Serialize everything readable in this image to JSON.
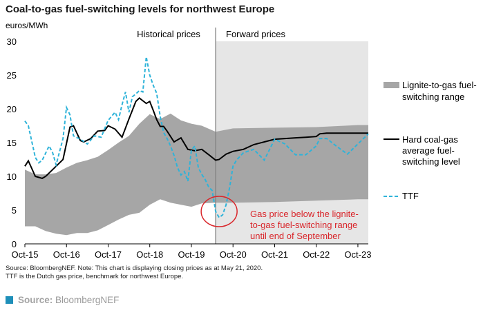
{
  "title": "Coal-to-gas fuel-switching levels for northwest Europe",
  "source_note_line1": "Source: BloombergNEF. Note: This chart is displaying closing prices as at May 21, 2020.",
  "source_note_line2": "TTF is the Dutch gas price, benchmark for northwest Europe.",
  "source_footer_label": "Source:",
  "source_footer_value": "BloombergNEF",
  "colors": {
    "band": "#a6a6a6",
    "hard_coal": "#000000",
    "ttf": "#2eb3d9",
    "forward_shading": "#e6e6e6",
    "annotation": "#d9262b",
    "divider": "#808080",
    "brand_square": "#1e8fb9"
  },
  "chart_data": {
    "type": "line",
    "ylabel": "euros/MWh",
    "ylim": [
      0,
      30
    ],
    "yticks": [
      0,
      5,
      10,
      15,
      20,
      25,
      30
    ],
    "xlim": [
      "2015-10",
      "2024-01"
    ],
    "xticks": [
      "Oct-15",
      "Oct-16",
      "Oct-17",
      "Oct-18",
      "Oct-19",
      "Oct-20",
      "Oct-21",
      "Oct-22",
      "Oct-23"
    ],
    "grid": false,
    "region_labels": {
      "historical": "Historical prices",
      "forward": "Forward prices",
      "forward_start": "2020-05"
    },
    "legend": {
      "placement": "right",
      "band": "Lignite-to-gas fuel-switching range",
      "hard_coal": "Hard coal-gas average fuel-switching level",
      "ttf": "TTF"
    },
    "annotation": {
      "text": "Gas price below the lignite-to-gas fuel-switching range until end of September",
      "lines": [
        "Gas price below the lignite-",
        "to-gas fuel-switching range",
        "until end of September"
      ],
      "circle_center": [
        "2020-06",
        4.8
      ]
    },
    "series": [
      {
        "name": "Lignite-to-gas fuel-switching range",
        "style": "band",
        "x": [
          "2015-10",
          "2016-01",
          "2016-04",
          "2016-07",
          "2016-10",
          "2017-01",
          "2017-04",
          "2017-07",
          "2017-10",
          "2018-01",
          "2018-04",
          "2018-07",
          "2018-10",
          "2019-01",
          "2019-04",
          "2019-07",
          "2019-10",
          "2020-01",
          "2020-05",
          "2020-10",
          "2021-10",
          "2022-10",
          "2023-10",
          "2024-01"
        ],
        "low": [
          2.6,
          2.6,
          1.9,
          1.5,
          1.3,
          1.6,
          1.6,
          2.0,
          2.8,
          3.6,
          4.3,
          4.6,
          5.8,
          6.6,
          6.1,
          5.8,
          5.5,
          6.0,
          6.1,
          6.1,
          6.2,
          6.4,
          6.6,
          6.6
        ],
        "high": [
          11.0,
          10.3,
          10.3,
          10.5,
          11.3,
          12.0,
          12.4,
          12.9,
          13.9,
          15.0,
          16.0,
          17.8,
          19.2,
          18.5,
          19.3,
          18.3,
          17.8,
          17.5,
          16.6,
          17.1,
          17.2,
          17.3,
          17.6,
          17.6
        ]
      },
      {
        "name": "Hard coal-gas average fuel-switching level",
        "style": "solid",
        "x": [
          "2015-10",
          "2015-11",
          "2016-01",
          "2016-03",
          "2016-04",
          "2016-07",
          "2016-09",
          "2016-11",
          "2016-12",
          "2017-02",
          "2017-03",
          "2017-05",
          "2017-07",
          "2017-09",
          "2017-10",
          "2017-12",
          "2018-02",
          "2018-04",
          "2018-06",
          "2018-07",
          "2018-09",
          "2018-10",
          "2018-11",
          "2018-12",
          "2019-01",
          "2019-02",
          "2019-03",
          "2019-05",
          "2019-07",
          "2019-09",
          "2019-11",
          "2020-01",
          "2020-03",
          "2020-05",
          "2020-06",
          "2020-08",
          "2020-10",
          "2021-01",
          "2021-04",
          "2021-07",
          "2021-10",
          "2022-01",
          "2022-04",
          "2022-07",
          "2022-10",
          "2022-11",
          "2023-01",
          "2023-04",
          "2023-07",
          "2023-10",
          "2024-01"
        ],
        "values": [
          11.5,
          12.3,
          10.0,
          9.7,
          10.0,
          11.5,
          12.5,
          17.3,
          17.5,
          15.3,
          15.1,
          15.6,
          16.7,
          16.8,
          17.5,
          17.0,
          15.8,
          18.5,
          21.1,
          21.6,
          20.8,
          21.1,
          19.8,
          18.4,
          17.4,
          17.4,
          16.7,
          15.1,
          15.7,
          14.0,
          13.8,
          14.0,
          13.2,
          12.4,
          12.5,
          13.3,
          13.7,
          14.0,
          14.7,
          15.1,
          15.5,
          15.6,
          15.7,
          15.8,
          15.9,
          16.3,
          16.4,
          16.4,
          16.4,
          16.4,
          16.4
        ]
      },
      {
        "name": "TTF",
        "style": "dashed",
        "x": [
          "2015-10",
          "2015-11",
          "2016-01",
          "2016-02",
          "2016-03",
          "2016-05",
          "2016-06",
          "2016-07",
          "2016-09",
          "2016-10",
          "2016-11",
          "2016-12",
          "2017-02",
          "2017-04",
          "2017-06",
          "2017-08",
          "2017-10",
          "2017-12",
          "2018-01",
          "2018-02",
          "2018-03",
          "2018-04",
          "2018-05",
          "2018-06",
          "2018-07",
          "2018-08",
          "2018-09",
          "2018-10",
          "2018-11",
          "2018-12",
          "2019-01",
          "2019-02",
          "2019-03",
          "2019-04",
          "2019-05",
          "2019-06",
          "2019-07",
          "2019-08",
          "2019-09",
          "2019-10",
          "2019-11",
          "2019-12",
          "2020-01",
          "2020-02",
          "2020-03",
          "2020-04",
          "2020-05",
          "2020-06",
          "2020-07",
          "2020-08",
          "2020-09",
          "2020-10",
          "2020-11",
          "2021-01",
          "2021-04",
          "2021-07",
          "2021-10",
          "2022-01",
          "2022-04",
          "2022-07",
          "2022-10",
          "2022-11",
          "2023-01",
          "2023-04",
          "2023-07",
          "2023-10",
          "2024-01"
        ],
        "values": [
          18.2,
          17.5,
          12.8,
          12.0,
          12.4,
          14.5,
          13.5,
          11.7,
          15.6,
          20.2,
          19.1,
          16.0,
          15.5,
          14.8,
          16.0,
          15.8,
          18.3,
          19.5,
          18.4,
          20.6,
          22.5,
          19.5,
          21.8,
          22.2,
          22.7,
          22.5,
          27.7,
          25.0,
          23.5,
          22.3,
          18.9,
          16.5,
          15.6,
          14.5,
          13.1,
          11.3,
          10.2,
          10.7,
          9.3,
          13.9,
          14.5,
          11.3,
          10.3,
          9.5,
          8.4,
          7.9,
          4.8,
          3.9,
          4.3,
          5.8,
          8.3,
          11.5,
          12.4,
          13.5,
          14.0,
          12.4,
          15.5,
          14.8,
          13.2,
          13.2,
          14.5,
          15.6,
          15.6,
          14.4,
          13.3,
          14.8,
          16.3
        ]
      }
    ]
  }
}
